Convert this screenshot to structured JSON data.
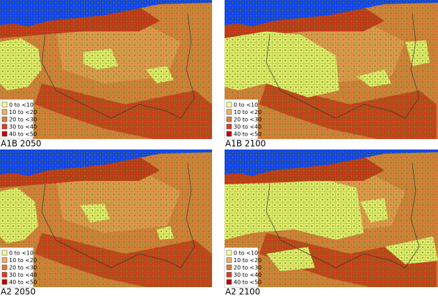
{
  "panels": [
    {
      "caption": "A1B 2050"
    },
    {
      "caption": "A1B 2100"
    },
    {
      "caption": "A2 2050"
    },
    {
      "caption": "A2 2100"
    }
  ],
  "legend": {
    "labels": [
      "0 to <10",
      "10 to <20",
      "20 to <30",
      "30 to <40",
      "40 to <50"
    ],
    "colors": [
      "#ffff99",
      "#f0b060",
      "#e07a3a",
      "#d84020",
      "#c00000"
    ]
  }
}
